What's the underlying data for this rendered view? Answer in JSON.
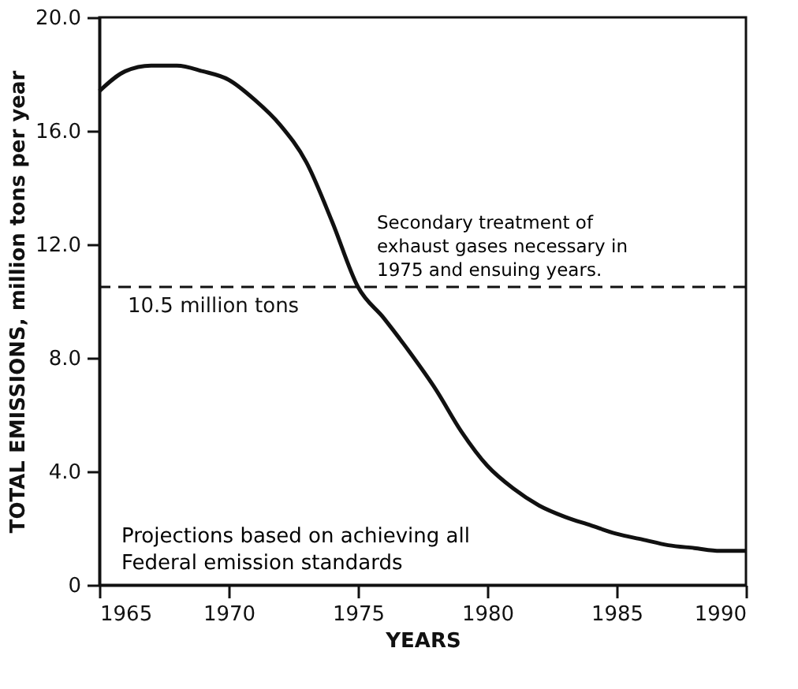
{
  "chart_data": {
    "type": "line",
    "xlabel": "YEARS",
    "ylabel": "TOTAL EMISSIONS, million tons per year",
    "x": [
      1965,
      1966,
      1967,
      1968,
      1969,
      1970,
      1971,
      1972,
      1973,
      1974,
      1975,
      1976,
      1977,
      1978,
      1979,
      1980,
      1981,
      1982,
      1983,
      1984,
      1985,
      1986,
      1987,
      1988,
      1989,
      1990
    ],
    "series": [
      {
        "color": "#111111",
        "values": [
          17.4,
          18.1,
          18.3,
          18.3,
          18.1,
          17.8,
          17.1,
          16.2,
          14.9,
          12.8,
          10.5,
          9.4,
          8.2,
          6.9,
          5.4,
          4.2,
          3.4,
          2.8,
          2.4,
          2.1,
          1.8,
          1.6,
          1.4,
          1.3,
          1.2,
          1.2
        ]
      }
    ],
    "xlim": [
      1965,
      1990
    ],
    "xticks": [
      1965,
      1970,
      1975,
      1980,
      1985,
      1990
    ],
    "ylim": [
      0,
      20
    ],
    "yticks": [
      {
        "value": 0,
        "label": "0"
      },
      {
        "value": 4,
        "label": "4.0"
      },
      {
        "value": 8,
        "label": "8.0"
      },
      {
        "value": 12,
        "label": "12.0"
      },
      {
        "value": 16,
        "label": "16.0"
      },
      {
        "value": 20,
        "label": "20.0"
      }
    ],
    "ref_lines": [
      {
        "axis": "y",
        "value": 10.5,
        "label": "10.5 million tons",
        "line_style": "dashed",
        "color": "#111111"
      }
    ],
    "annotations": [
      {
        "text": "Secondary treatment of exhaust gases necessary in 1975 and ensuing years.",
        "x": 1975,
        "y": 10.5
      },
      "Projections based on achieving all Federal emission standards"
    ],
    "grid": false,
    "line_style": "solid",
    "marker": "none"
  }
}
